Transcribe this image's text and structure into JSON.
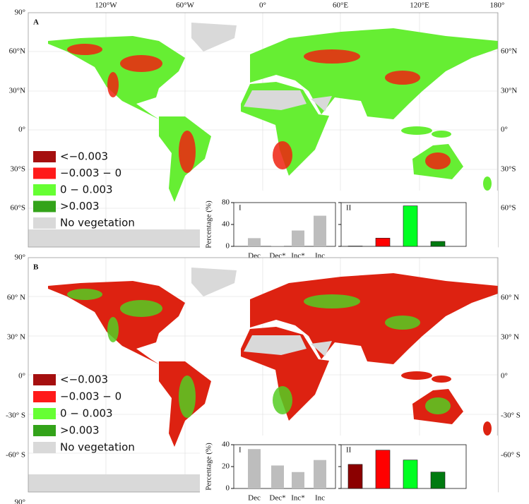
{
  "panels": [
    {
      "label": "A",
      "lon_labels": [
        "120°W",
        "60°W",
        "0°",
        "60°E",
        "120°E",
        "180°"
      ],
      "lat_labels_left": [
        "90°",
        "60°N",
        "30°N",
        "0°",
        "30°S",
        "60°S"
      ],
      "lat_labels_right": [
        "60°N",
        "30°N",
        "0°",
        "30°S",
        "60°S"
      ],
      "legend": [
        {
          "label": "<−0.003",
          "color": "#a50f0f"
        },
        {
          "label": "−0.003 − 0",
          "color": "#ff1a1a"
        },
        {
          "label": "0 − 0.003",
          "color": "#66ff33"
        },
        {
          "label": ">0.003",
          "color": "#33a31a"
        },
        {
          "label": "No vegetation",
          "color": "#d9d9d9"
        }
      ],
      "inset": {
        "ylabel": "Percentage (%)",
        "ylim": [
          0,
          80
        ],
        "yticks": [
          0,
          40,
          80
        ],
        "I": {
          "label": "I",
          "categories": [
            "Dec",
            "Dec*",
            "Inc*",
            "Inc"
          ],
          "values": [
            15,
            1,
            29,
            56
          ],
          "color": "#bdbdbd"
        },
        "II": {
          "label": "II",
          "values": [
            0.5,
            15,
            74,
            9
          ],
          "colors": [
            "#8b0000",
            "#ff0000",
            "#00ff22",
            "#007a10"
          ]
        }
      }
    },
    {
      "label": "B",
      "lat_labels_left": [
        "90°",
        "60° N",
        "30° N",
        "0°",
        "-30° S",
        "-60° S",
        "90°"
      ],
      "lat_labels_right": [
        "60° N",
        "30° N",
        "0°",
        "-30° S",
        "-60° S"
      ],
      "legend": [
        {
          "label": "<−0.003",
          "color": "#a50f0f"
        },
        {
          "label": "−0.003 − 0",
          "color": "#ff1a1a"
        },
        {
          "label": "0 − 0.003",
          "color": "#66ff33"
        },
        {
          "label": ">0.003",
          "color": "#33a31a"
        },
        {
          "label": "No vegetation",
          "color": "#d9d9d9"
        }
      ],
      "inset": {
        "ylabel": "Percentage (%)",
        "ylim": [
          0,
          40
        ],
        "yticks": [
          0,
          20,
          40
        ],
        "I": {
          "label": "I",
          "categories": [
            "Dec",
            "Dec*",
            "Inc*",
            "Inc"
          ],
          "values": [
            36,
            21,
            15,
            26
          ],
          "color": "#bdbdbd"
        },
        "II": {
          "label": "II",
          "values": [
            22,
            35,
            26,
            15
          ],
          "colors": [
            "#8b0000",
            "#ff0000",
            "#00ff22",
            "#007a10"
          ]
        }
      }
    }
  ]
}
